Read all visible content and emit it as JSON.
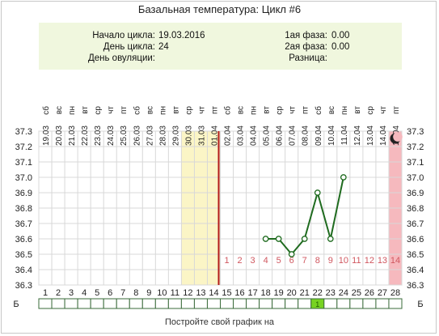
{
  "title": "Базальная температура: Цикл #6",
  "info": {
    "cycle_start_label": "Начало цикла:",
    "cycle_start_value": "19.03.2016",
    "cycle_day_label": "День цикла:",
    "cycle_day_value": "24",
    "ovulation_day_label": "День овуляции:",
    "ovulation_day_value": "",
    "phase1_label": "1ая фаза:",
    "phase1_value": "0.00",
    "phase2_label": "2ая фаза:",
    "phase2_value": "0.00",
    "difference_label": "Разница:",
    "difference_value": ""
  },
  "footer_text": "Постройте свой график на",
  "colors": {
    "line": "#1f6b1f",
    "yellow_band": "#fbf5c6",
    "pink_band": "#f6b9be",
    "cursor_line": "#b31b1b",
    "phase_number": "#d0575f",
    "grid": "#d8d8d8",
    "highlight_cell": "#77d321"
  },
  "chart_data": {
    "type": "line",
    "dates": [
      "19.03",
      "20.03",
      "21.03",
      "22.03",
      "23.03",
      "24.03",
      "25.03",
      "26.03",
      "27.03",
      "28.03",
      "29.03",
      "30.03",
      "31.03",
      "01.04",
      "02.04",
      "03.04",
      "04.04",
      "05.04",
      "06.04",
      "07.04",
      "08.04",
      "09.04",
      "10.04",
      "11.04",
      "12.04",
      "13.04",
      "14.04",
      "15.04"
    ],
    "weekdays": [
      "сб",
      "вс",
      "пн",
      "вт",
      "ср",
      "чт",
      "пт",
      "сб",
      "вс",
      "пн",
      "вт",
      "ср",
      "чт",
      "пт",
      "сб",
      "вс",
      "пн",
      "вт",
      "ср",
      "чт",
      "пт",
      "сб",
      "вс",
      "пн",
      "вт",
      "ср",
      "чт",
      "пт"
    ],
    "days": [
      1,
      2,
      3,
      4,
      5,
      6,
      7,
      8,
      9,
      10,
      11,
      12,
      13,
      14,
      15,
      16,
      17,
      18,
      19,
      20,
      21,
      22,
      23,
      24,
      25,
      26,
      27,
      28
    ],
    "yticks": [
      "36.3",
      "36.4",
      "36.5",
      "36.6",
      "36.7",
      "36.8",
      "36.9",
      "37.0",
      "37.1",
      "37.2",
      "37.3"
    ],
    "ylim": [
      36.3,
      37.3
    ],
    "series": [
      {
        "x": [
          18,
          19,
          20,
          21,
          22,
          23,
          24
        ],
        "y": [
          36.6,
          36.6,
          36.5,
          36.6,
          36.9,
          36.6,
          37.0
        ]
      }
    ],
    "phase_numbers": [
      {
        "day": 15,
        "label": "1"
      },
      {
        "day": 16,
        "label": "2"
      },
      {
        "day": 17,
        "label": "3"
      },
      {
        "day": 18,
        "label": "4"
      },
      {
        "day": 19,
        "label": "5"
      },
      {
        "day": 20,
        "label": "6"
      },
      {
        "day": 21,
        "label": "7"
      },
      {
        "day": 22,
        "label": "8"
      },
      {
        "day": 23,
        "label": "9"
      },
      {
        "day": 24,
        "label": "10"
      },
      {
        "day": 25,
        "label": "11"
      },
      {
        "day": 26,
        "label": "12"
      },
      {
        "day": 27,
        "label": "13"
      },
      {
        "day": 28,
        "label": "14"
      }
    ],
    "yellow_band_days": [
      12,
      14
    ],
    "vertical_line_after_day": 14,
    "pink_band_day": 28,
    "bottom_row_label": "Б",
    "bottom_row_highlight_day": 22,
    "bottom_row_highlight_text": "1",
    "grid": true
  }
}
